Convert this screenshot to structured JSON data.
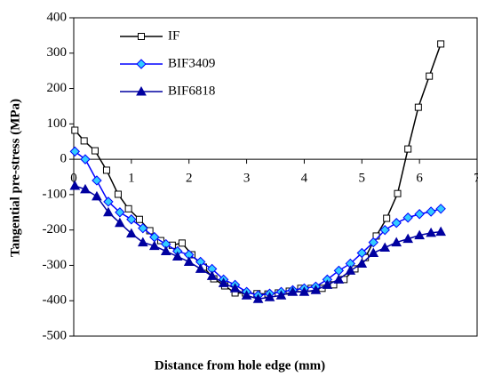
{
  "chart_data": {
    "type": "line",
    "x_label": "Distance from hole edge (mm)",
    "y_label": "Tangential pre-stress (MPa)",
    "xlim": [
      0,
      7
    ],
    "xticks": [
      0,
      1,
      2,
      3,
      4,
      5,
      6,
      7
    ],
    "ylim": [
      -500,
      400
    ],
    "yticks": [
      -500,
      -400,
      -300,
      -200,
      -100,
      0,
      100,
      200,
      300,
      400
    ],
    "grid": false,
    "legend": "upper left",
    "series": [
      {
        "name": "IF",
        "color": "#000000",
        "marker": "square",
        "marker_fill": "#ffffff",
        "x": [
          0.02,
          0.18,
          0.37,
          0.57,
          0.77,
          0.95,
          1.14,
          1.32,
          1.51,
          1.71,
          1.88,
          2.05,
          2.25,
          2.43,
          2.62,
          2.8,
          2.98,
          3.18,
          3.37,
          3.55,
          3.74,
          3.94,
          4.12,
          4.31,
          4.51,
          4.69,
          4.88,
          5.06,
          5.25,
          5.43,
          5.62,
          5.8,
          5.98,
          6.17,
          6.37
        ],
        "values": [
          82,
          52,
          24,
          -31,
          -99,
          -140,
          -170,
          -202,
          -230,
          -243,
          -237,
          -270,
          -305,
          -338,
          -358,
          -378,
          -378,
          -380,
          -381,
          -378,
          -373,
          -365,
          -365,
          -365,
          -355,
          -340,
          -310,
          -278,
          -217,
          -167,
          -97,
          29,
          147,
          235,
          326
        ]
      },
      {
        "name": "BIF3409",
        "color": "#0000ff",
        "marker": "diamond",
        "marker_fill": "#33ccff",
        "x": [
          0.02,
          0.2,
          0.4,
          0.6,
          0.8,
          1.0,
          1.2,
          1.4,
          1.6,
          1.8,
          2.0,
          2.2,
          2.4,
          2.6,
          2.8,
          3.0,
          3.2,
          3.4,
          3.6,
          3.8,
          4.0,
          4.2,
          4.4,
          4.6,
          4.8,
          5.0,
          5.2,
          5.4,
          5.6,
          5.8,
          6.0,
          6.2,
          6.37
        ],
        "values": [
          22,
          0,
          -60,
          -120,
          -150,
          -170,
          -195,
          -220,
          -240,
          -260,
          -270,
          -290,
          -310,
          -340,
          -355,
          -375,
          -385,
          -380,
          -375,
          -370,
          -365,
          -360,
          -340,
          -315,
          -295,
          -265,
          -235,
          -200,
          -180,
          -165,
          -155,
          -148,
          -140
        ]
      },
      {
        "name": "BIF6818",
        "color": "#0000a0",
        "marker": "triangle",
        "marker_fill": "#0000a0",
        "x": [
          0.02,
          0.2,
          0.4,
          0.6,
          0.8,
          1.0,
          1.2,
          1.4,
          1.6,
          1.8,
          2.0,
          2.2,
          2.4,
          2.6,
          2.8,
          3.0,
          3.2,
          3.4,
          3.6,
          3.8,
          4.0,
          4.2,
          4.4,
          4.6,
          4.8,
          5.0,
          5.2,
          5.4,
          5.6,
          5.8,
          6.0,
          6.2,
          6.37
        ],
        "values": [
          -75,
          -85,
          -105,
          -150,
          -180,
          -210,
          -235,
          -245,
          -260,
          -275,
          -290,
          -310,
          -330,
          -350,
          -365,
          -385,
          -395,
          -390,
          -385,
          -375,
          -375,
          -370,
          -355,
          -340,
          -315,
          -295,
          -265,
          -250,
          -235,
          -225,
          -215,
          -208,
          -205
        ]
      }
    ]
  }
}
